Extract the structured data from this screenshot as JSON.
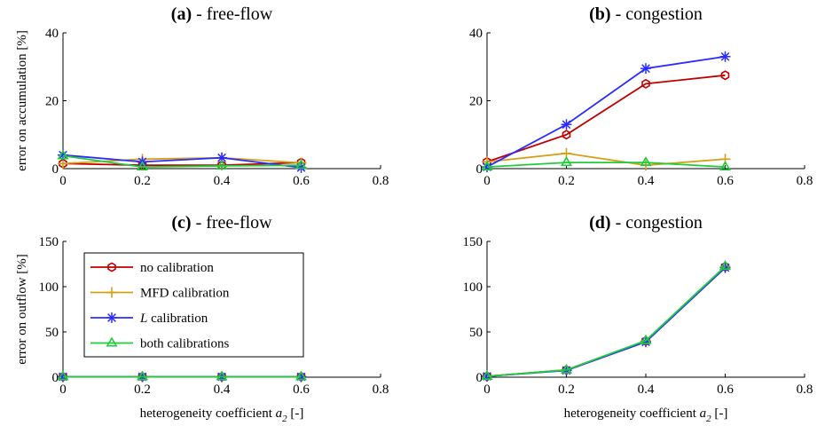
{
  "chart_data": [
    {
      "type": "line",
      "title_tag": "(a)",
      "title_rest": " - free-flow",
      "ylabel": "error on accumulation [%]",
      "xlabel": "",
      "xlim": [
        0,
        0.8
      ],
      "ylim": [
        0,
        40
      ],
      "xticks": [
        0,
        0.2,
        0.4,
        0.6,
        0.8
      ],
      "yticks": [
        0,
        20,
        40
      ],
      "x": [
        0,
        0.2,
        0.4,
        0.6
      ],
      "series": [
        {
          "name": "no calibration",
          "values": [
            1.5,
            1.0,
            1.0,
            1.8
          ]
        },
        {
          "name": "MFD calibration",
          "values": [
            1.5,
            2.8,
            3.2,
            1.7
          ]
        },
        {
          "name": "L calibration",
          "values": [
            4.0,
            2.0,
            3.2,
            0.3
          ]
        },
        {
          "name": "both calibrations",
          "values": [
            3.8,
            0.5,
            0.8,
            1.0
          ]
        }
      ]
    },
    {
      "type": "line",
      "title_tag": "(b)",
      "title_rest": " - congestion",
      "ylabel": "",
      "xlabel": "",
      "xlim": [
        0,
        0.8
      ],
      "ylim": [
        0,
        40
      ],
      "xticks": [
        0,
        0.2,
        0.4,
        0.6,
        0.8
      ],
      "yticks": [
        0,
        20,
        40
      ],
      "x": [
        0,
        0.2,
        0.4,
        0.6
      ],
      "series": [
        {
          "name": "no calibration",
          "values": [
            2.0,
            10.0,
            25.0,
            27.5
          ]
        },
        {
          "name": "MFD calibration",
          "values": [
            2.0,
            4.5,
            1.0,
            2.8
          ]
        },
        {
          "name": "L calibration",
          "values": [
            0.5,
            13.0,
            29.5,
            33.0
          ]
        },
        {
          "name": "both calibrations",
          "values": [
            0.5,
            1.8,
            1.8,
            0.5
          ]
        }
      ]
    },
    {
      "type": "line",
      "title_tag": "(c)",
      "title_rest": " - free-flow",
      "ylabel": "error on outflow [%]",
      "xlabel_pre": "heterogeneity coefficient ",
      "xlabel_var": "a",
      "xlabel_sub": "2",
      "xlabel_post": " [-]",
      "xlim": [
        0,
        0.8
      ],
      "ylim": [
        0,
        150
      ],
      "xticks": [
        0,
        0.2,
        0.4,
        0.6,
        0.8
      ],
      "yticks": [
        0,
        50,
        100,
        150
      ],
      "x": [
        0,
        0.2,
        0.4,
        0.6
      ],
      "series": [
        {
          "name": "no calibration",
          "values": [
            0.5,
            0.5,
            0.5,
            0.5
          ]
        },
        {
          "name": "MFD calibration",
          "values": [
            0.5,
            0.5,
            0.5,
            0.5
          ]
        },
        {
          "name": "L calibration",
          "values": [
            0.5,
            0.5,
            0.5,
            0.5
          ]
        },
        {
          "name": "both calibrations",
          "values": [
            0.5,
            0.5,
            0.5,
            0.5
          ]
        }
      ]
    },
    {
      "type": "line",
      "title_tag": "(d)",
      "title_rest": " - congestion",
      "ylabel": "",
      "xlabel_pre": "heterogeneity coefficient ",
      "xlabel_var": "a",
      "xlabel_sub": "2",
      "xlabel_post": " [-]",
      "xlim": [
        0,
        0.8
      ],
      "ylim": [
        0,
        150
      ],
      "xticks": [
        0,
        0.2,
        0.4,
        0.6,
        0.8
      ],
      "yticks": [
        0,
        50,
        100,
        150
      ],
      "x": [
        0,
        0.2,
        0.4,
        0.6
      ],
      "series": [
        {
          "name": "no calibration",
          "values": [
            1.0,
            8.0,
            40.0,
            122.0
          ]
        },
        {
          "name": "MFD calibration",
          "values": [
            1.0,
            8.0,
            40.0,
            122.0
          ]
        },
        {
          "name": "L calibration",
          "values": [
            1.0,
            7.5,
            39.0,
            121.0
          ]
        },
        {
          "name": "both calibrations",
          "values": [
            1.0,
            8.0,
            40.5,
            122.5
          ]
        }
      ]
    }
  ],
  "legend": {
    "placement": "inside-panel-c-top-left",
    "entries": [
      {
        "pre": "no calibration",
        "italic": "",
        "post": "",
        "color": "#c00000",
        "marker": "hexagon"
      },
      {
        "pre": "MFD calibration",
        "italic": "",
        "post": "",
        "color": "#d4a017",
        "marker": "plus"
      },
      {
        "pre": "",
        "italic": "L",
        "post": " calibration",
        "color": "#2b2bff",
        "marker": "asterisk"
      },
      {
        "pre": "both calibrations",
        "italic": "",
        "post": "",
        "color": "#1fcc3a",
        "marker": "triangle"
      }
    ]
  },
  "colors": {
    "no calibration": "#c00000",
    "MFD calibration": "#d4a017",
    "L calibration": "#2b2bff",
    "both calibrations": "#1fcc3a"
  },
  "markers": {
    "no calibration": "hexagon",
    "MFD calibration": "plus",
    "L calibration": "asterisk",
    "both calibrations": "triangle"
  }
}
